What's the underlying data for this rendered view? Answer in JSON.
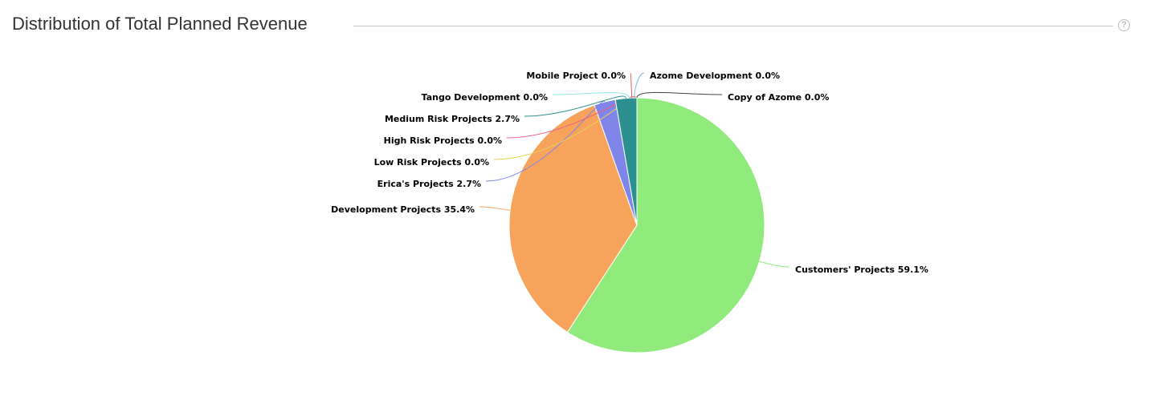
{
  "header": {
    "title": "Distribution of Total Planned Revenue",
    "help_icon": "?"
  },
  "chart_data": {
    "type": "pie",
    "title": "Distribution of Total Planned Revenue",
    "start": "top, clockwise",
    "slices": [
      {
        "label": "Customers' Projects",
        "value": 59.1,
        "color": "#90eb7c"
      },
      {
        "label": "Development Projects",
        "value": 35.4,
        "color": "#f7a35c"
      },
      {
        "label": "Erica's Projects",
        "value": 2.7,
        "color": "#8085e9"
      },
      {
        "label": "Low Risk Projects",
        "value": 0.0,
        "color": "#e4d354"
      },
      {
        "label": "High Risk Projects",
        "value": 0.0,
        "color": "#f15c80"
      },
      {
        "label": "Medium Risk Projects",
        "value": 2.7,
        "color": "#2b908f"
      },
      {
        "label": "Tango Development",
        "value": 0.0,
        "color": "#91e8e1"
      },
      {
        "label": "Mobile Project",
        "value": 0.0,
        "color": "#f45b5b"
      },
      {
        "label": "Azome Development",
        "value": 0.0,
        "color": "#7cb5ec"
      },
      {
        "label": "Copy of Azome",
        "value": 0.0,
        "color": "#434348"
      }
    ]
  }
}
